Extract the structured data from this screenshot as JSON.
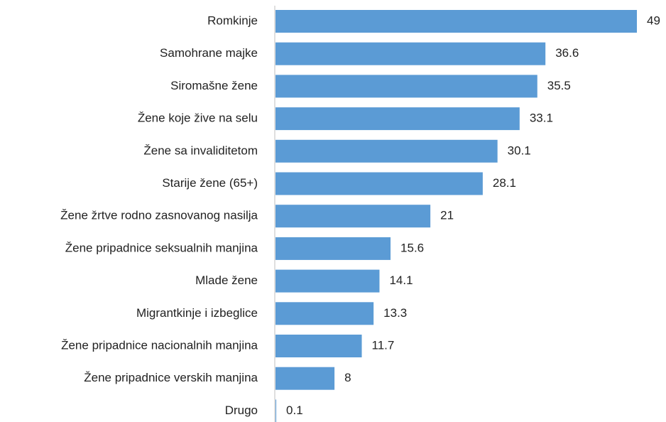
{
  "chart_data": {
    "type": "bar",
    "orientation": "horizontal",
    "categories": [
      "Romkinje",
      "Samohrane majke",
      "Siromašne žene",
      "Žene koje žive na selu",
      "Žene sa invaliditetom",
      "Starije žene (65+)",
      "Žene žrtve rodno zasnovanog nasilja",
      "Žene pripadnice seksualnih manjina",
      "Mlade žene",
      "Migrantkinje i izbeglice",
      "Žene pripadnice nacionalnih manjina",
      "Žene pripadnice verskih manjina",
      "Drugo"
    ],
    "values": [
      49,
      36.6,
      35.5,
      33.1,
      30.1,
      28.1,
      21,
      15.6,
      14.1,
      13.3,
      11.7,
      8,
      0.1
    ],
    "color": "#5b9bd5"
  }
}
